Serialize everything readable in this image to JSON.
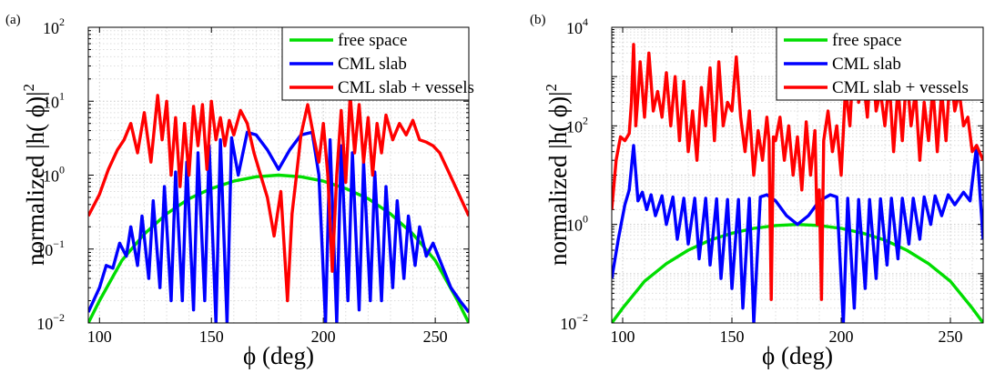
{
  "chart_data": [
    {
      "type": "line",
      "panel_label": "(a)",
      "xlabel": "ϕ (deg)",
      "ylabel": "normalized |h( ϕ)|",
      "ylabel_sup": "2",
      "xlim": [
        95,
        265
      ],
      "ylim": [
        0.01,
        100
      ],
      "yscale": "log",
      "xticks": [
        "100",
        "150",
        "200",
        "250"
      ],
      "yticks": [
        {
          "base": "10",
          "exp": "−2"
        },
        {
          "base": "10",
          "exp": "−1"
        },
        {
          "base": "10",
          "exp": "0"
        },
        {
          "base": "10",
          "exp": "1"
        },
        {
          "base": "10",
          "exp": "2"
        }
      ],
      "grid": true,
      "legend_position": "top-right",
      "series": [
        {
          "name": "free space",
          "color": "#00dd00",
          "x": [
            95,
            100,
            110,
            120,
            130,
            140,
            150,
            160,
            170,
            180,
            190,
            200,
            210,
            220,
            230,
            240,
            250,
            260,
            265
          ],
          "y": [
            0.008,
            0.02,
            0.07,
            0.16,
            0.3,
            0.48,
            0.66,
            0.83,
            0.95,
            1.0,
            0.95,
            0.83,
            0.66,
            0.48,
            0.3,
            0.16,
            0.07,
            0.02,
            0.008
          ]
        },
        {
          "name": "CML slab",
          "color": "#0000ff",
          "x": [
            95,
            100,
            103,
            106,
            109,
            112,
            114,
            117,
            119,
            122,
            124,
            127,
            129,
            132,
            134,
            137,
            139,
            142,
            144,
            147,
            149,
            152,
            154,
            157,
            159,
            162,
            166,
            170,
            175,
            180,
            185,
            190,
            195,
            198,
            201,
            203,
            206,
            208,
            211,
            213,
            216,
            218,
            221,
            223,
            226,
            228,
            231,
            233,
            236,
            238,
            241,
            243,
            246,
            249,
            253,
            257,
            261,
            265
          ],
          "y": [
            0.014,
            0.03,
            0.06,
            0.055,
            0.12,
            0.08,
            0.2,
            0.06,
            0.28,
            0.04,
            0.45,
            0.03,
            0.7,
            0.02,
            1.1,
            0.02,
            1.5,
            0.015,
            2.0,
            0.02,
            2.5,
            0.01,
            3.0,
            0.005,
            3.2,
            1.0,
            3.8,
            3.5,
            2.2,
            1.2,
            2.2,
            3.5,
            3.8,
            1.0,
            0.005,
            3.0,
            0.01,
            2.5,
            0.02,
            2.0,
            0.015,
            1.5,
            0.02,
            1.1,
            0.02,
            0.7,
            0.03,
            0.45,
            0.04,
            0.28,
            0.06,
            0.2,
            0.08,
            0.12,
            0.06,
            0.03,
            0.02,
            0.014
          ]
        },
        {
          "name": "CML slab + vessels",
          "color": "#ff0000",
          "x": [
            95,
            100,
            104,
            108,
            111,
            114,
            117,
            120,
            123,
            126,
            128,
            130,
            132,
            134,
            136,
            138,
            140,
            142,
            144,
            146,
            148,
            150,
            152,
            154,
            156,
            158,
            160,
            163,
            166,
            169,
            172,
            175,
            178,
            181,
            184,
            186,
            188,
            190,
            193,
            196,
            198,
            200,
            202,
            204,
            206,
            208,
            210,
            212,
            214,
            216,
            218,
            220,
            222,
            224,
            226,
            228,
            231,
            234,
            237,
            240,
            243,
            246,
            249,
            252,
            256,
            260,
            265
          ],
          "y": [
            0.28,
            0.55,
            1.2,
            2.2,
            3.0,
            5.0,
            2.0,
            7.0,
            1.5,
            12.0,
            3.0,
            10.0,
            1.0,
            6.0,
            0.7,
            5.0,
            1.0,
            8.5,
            2.5,
            9.0,
            1.2,
            10.0,
            3.0,
            6.0,
            2.5,
            5.5,
            3.5,
            7.5,
            5.0,
            2.0,
            1.0,
            0.5,
            0.15,
            0.6,
            0.02,
            0.3,
            1.0,
            3.5,
            9.0,
            3.0,
            1.5,
            5.0,
            1.0,
            0.05,
            1.0,
            7.5,
            0.8,
            12.0,
            2.0,
            9.0,
            1.5,
            6.0,
            1.0,
            5.0,
            2.0,
            6.5,
            3.0,
            5.0,
            3.5,
            5.5,
            3.0,
            2.8,
            2.5,
            2.0,
            1.1,
            0.6,
            0.28
          ]
        }
      ]
    },
    {
      "type": "line",
      "panel_label": "(b)",
      "xlabel": "ϕ (deg)",
      "ylabel": "normalized |h( ϕ)|",
      "ylabel_sup": "2",
      "xlim": [
        95,
        265
      ],
      "ylim": [
        0.01,
        10000
      ],
      "yscale": "log",
      "xticks": [
        "100",
        "150",
        "200",
        "250"
      ],
      "yticks": [
        {
          "base": "10",
          "exp": "−2"
        },
        {
          "base": "10",
          "exp": "0"
        },
        {
          "base": "10",
          "exp": "2"
        },
        {
          "base": "10",
          "exp": "4"
        }
      ],
      "grid": true,
      "legend_position": "top-right",
      "series": [
        {
          "name": "free space",
          "color": "#00dd00",
          "x": [
            95,
            100,
            110,
            120,
            130,
            140,
            150,
            160,
            170,
            180,
            190,
            200,
            210,
            220,
            230,
            240,
            250,
            260,
            265
          ],
          "y": [
            0.008,
            0.02,
            0.07,
            0.16,
            0.3,
            0.48,
            0.66,
            0.83,
            0.95,
            1.0,
            0.95,
            0.83,
            0.66,
            0.48,
            0.3,
            0.16,
            0.07,
            0.02,
            0.008
          ]
        },
        {
          "name": "CML slab",
          "color": "#0000ff",
          "x": [
            95,
            98,
            101,
            103,
            105,
            107,
            109,
            111,
            113,
            115,
            118,
            120,
            123,
            125,
            128,
            130,
            133,
            135,
            138,
            140,
            143,
            145,
            148,
            150,
            153,
            155,
            158,
            160,
            163,
            166,
            170,
            175,
            180,
            185,
            190,
            195,
            198,
            201,
            203,
            206,
            208,
            211,
            213,
            216,
            218,
            221,
            223,
            226,
            228,
            231,
            233,
            236,
            238,
            241,
            243,
            246,
            249,
            252,
            256,
            259,
            262,
            265
          ],
          "y": [
            0.08,
            0.5,
            2.5,
            5.0,
            40.0,
            3.0,
            4.5,
            2.0,
            4.0,
            1.5,
            3.8,
            1.0,
            3.6,
            0.5,
            3.4,
            0.4,
            3.4,
            0.2,
            3.4,
            0.15,
            3.3,
            0.08,
            3.2,
            0.05,
            3.2,
            0.02,
            3.4,
            0.005,
            3.6,
            4.0,
            3.0,
            1.5,
            1.0,
            1.5,
            3.0,
            4.0,
            3.6,
            0.005,
            3.4,
            0.02,
            3.2,
            0.05,
            3.2,
            0.08,
            3.3,
            0.15,
            3.4,
            0.2,
            3.4,
            0.4,
            3.4,
            0.5,
            3.6,
            1.0,
            3.8,
            1.5,
            4.0,
            2.5,
            4.5,
            3.0,
            40.0,
            0.5
          ]
        },
        {
          "name": "CML slab + vessels",
          "color": "#ff0000",
          "x": [
            95,
            97,
            99,
            101,
            103,
            104,
            105,
            106,
            107,
            108,
            110,
            112,
            114,
            116,
            118,
            120,
            122,
            124,
            126,
            128,
            130,
            132,
            134,
            136,
            138,
            140,
            142,
            144,
            146,
            148,
            150,
            152,
            154,
            156,
            158,
            160,
            162,
            164,
            166,
            167,
            168,
            169,
            170,
            172,
            174,
            176,
            178,
            180,
            182,
            184,
            186,
            188,
            189,
            190,
            191,
            192,
            194,
            196,
            198,
            200,
            202,
            204,
            206,
            208,
            210,
            212,
            214,
            216,
            218,
            220,
            222,
            224,
            226,
            228,
            230,
            232,
            234,
            236,
            238,
            240,
            242,
            244,
            246,
            248,
            250,
            252,
            254,
            256,
            258,
            260,
            262,
            265
          ],
          "y": [
            2.0,
            20.0,
            60.0,
            50.0,
            70.0,
            300.0,
            4500.0,
            100.0,
            400.0,
            2000.0,
            150.0,
            3000.0,
            200.0,
            500.0,
            150.0,
            1200.0,
            100.0,
            1000.0,
            50.0,
            800.0,
            30.0,
            200.0,
            20.0,
            600.0,
            100.0,
            1500.0,
            50.0,
            2000.0,
            100.0,
            300.0,
            200.0,
            2500.0,
            150.0,
            30.0,
            200.0,
            10.0,
            80.0,
            20.0,
            150.0,
            50.0,
            0.03,
            60.0,
            50.0,
            150.0,
            20.0,
            100.0,
            10.0,
            60.0,
            5.0,
            120.0,
            10.0,
            80.0,
            1.0,
            5.0,
            0.03,
            50.0,
            200.0,
            30.0,
            100.0,
            10.0,
            600.0,
            100.0,
            5000.0,
            300.0,
            1000.0,
            150.0,
            3000.0,
            200.0,
            500.0,
            100.0,
            800.0,
            30.0,
            600.0,
            50.0,
            1200.0,
            100.0,
            500.0,
            20.0,
            300.0,
            50.0,
            600.0,
            30.0,
            500.0,
            50.0,
            1500.0,
            200.0,
            500.0,
            100.0,
            150.0,
            30.0,
            40.0,
            20.0
          ]
        }
      ]
    }
  ]
}
